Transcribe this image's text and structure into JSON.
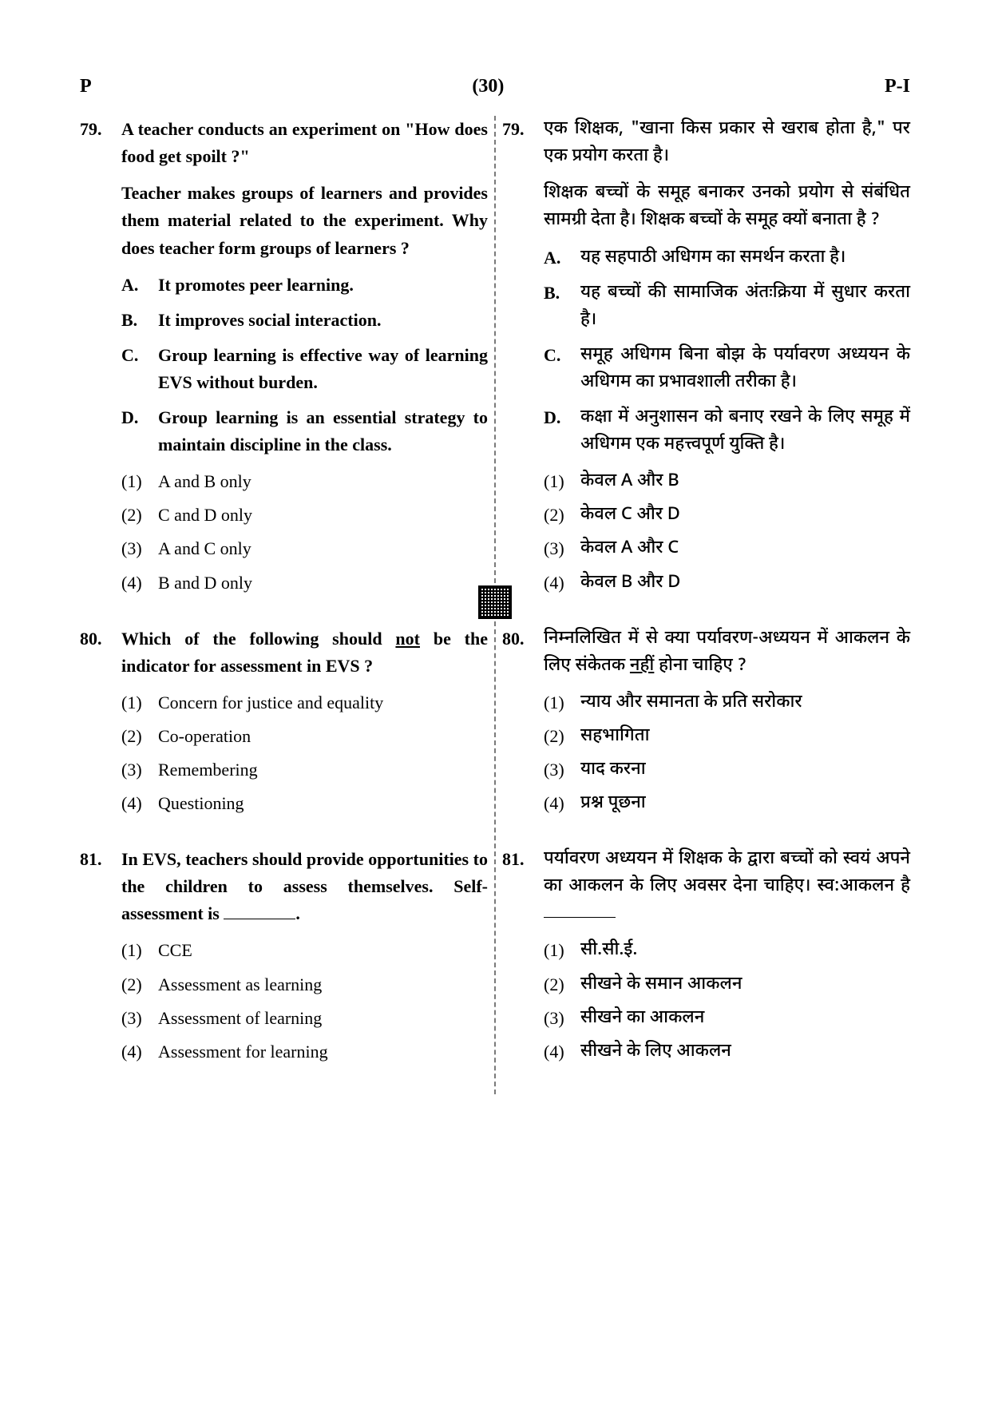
{
  "header": {
    "left": "P",
    "center": "(30)",
    "right": "P-I"
  },
  "left": {
    "q79": {
      "num": "79.",
      "text1": "A teacher conducts an experiment on \"How does food get spoilt ?\"",
      "text2": "Teacher makes groups of learners and provides them material related to the experiment. Why does teacher form groups of learners ?",
      "stmts": [
        {
          "l": "A.",
          "t": "It promotes peer learning."
        },
        {
          "l": "B.",
          "t": "It improves social interaction."
        },
        {
          "l": "C.",
          "t": "Group learning is effective way of learning EVS without burden."
        },
        {
          "l": "D.",
          "t": "Group learning is an essential strategy to maintain discipline in the class."
        }
      ],
      "opts": [
        {
          "l": "(1)",
          "t": "A and B only"
        },
        {
          "l": "(2)",
          "t": "C and D only"
        },
        {
          "l": "(3)",
          "t": "A and C only"
        },
        {
          "l": "(4)",
          "t": "B and D only"
        }
      ]
    },
    "q80": {
      "num": "80.",
      "pre": "Which of the following should ",
      "und": "not",
      "post": " be the indicator for assessment in EVS ?",
      "opts": [
        {
          "l": "(1)",
          "t": "Concern for justice and equality"
        },
        {
          "l": "(2)",
          "t": "Co-operation"
        },
        {
          "l": "(3)",
          "t": "Remembering"
        },
        {
          "l": "(4)",
          "t": "Questioning"
        }
      ]
    },
    "q81": {
      "num": "81.",
      "text": "In EVS, teachers should provide opportunities to the children to assess themselves. Self-assessment is ",
      "opts": [
        {
          "l": "(1)",
          "t": "CCE"
        },
        {
          "l": "(2)",
          "t": "Assessment as learning"
        },
        {
          "l": "(3)",
          "t": "Assessment of learning"
        },
        {
          "l": "(4)",
          "t": "Assessment for learning"
        }
      ]
    }
  },
  "right": {
    "q79": {
      "num": "79.",
      "text1": "एक शिक्षक, \"खाना किस प्रकार से खराब होता है,\" पर एक प्रयोग करता है।",
      "text2": "शिक्षक बच्चों के समूह बनाकर उनको प्रयोग से संबंधित सामग्री देता है। शिक्षक बच्चों के समूह क्यों बनाता है ?",
      "stmts": [
        {
          "l": "A.",
          "t": "यह सहपाठी अधिगम का समर्थन करता है।"
        },
        {
          "l": "B.",
          "t": "यह बच्चों की सामाजिक अंतःक्रिया में सुधार करता है।"
        },
        {
          "l": "C.",
          "t": "समूह अधिगम बिना बोझ के पर्यावरण अध्ययन के अधिगम का प्रभावशाली तरीका है।"
        },
        {
          "l": "D.",
          "t": "कक्षा में अनुशासन को बनाए रखने के लिए समूह में अधिगम एक महत्त्वपूर्ण युक्ति है।"
        }
      ],
      "opts": [
        {
          "l": "(1)",
          "t": "केवल A और B"
        },
        {
          "l": "(2)",
          "t": "केवल C और D"
        },
        {
          "l": "(3)",
          "t": "केवल A और C"
        },
        {
          "l": "(4)",
          "t": "केवल B और D"
        }
      ]
    },
    "q80": {
      "num": "80.",
      "pre": "निम्नलिखित में से क्या पर्यावरण-अध्ययन में आकलन के लिए संकेतक ",
      "und": "नहीं",
      "post": " होना चाहिए ?",
      "opts": [
        {
          "l": "(1)",
          "t": "न्याय और समानता के प्रति सरोकार"
        },
        {
          "l": "(2)",
          "t": "सहभागिता"
        },
        {
          "l": "(3)",
          "t": "याद करना"
        },
        {
          "l": "(4)",
          "t": "प्रश्न पूछना"
        }
      ]
    },
    "q81": {
      "num": "81.",
      "text": "पर्यावरण अध्ययन में शिक्षक के द्वारा बच्चों को स्वयं अपने का आकलन के लिए अवसर देना चाहिए। स्व:आकलन है ",
      "opts": [
        {
          "l": "(1)",
          "t": "सी.सी.ई."
        },
        {
          "l": "(2)",
          "t": "सीखने के समान आकलन"
        },
        {
          "l": "(3)",
          "t": "सीखने का आकलन"
        },
        {
          "l": "(4)",
          "t": "सीखने के लिए आकलन"
        }
      ]
    }
  }
}
